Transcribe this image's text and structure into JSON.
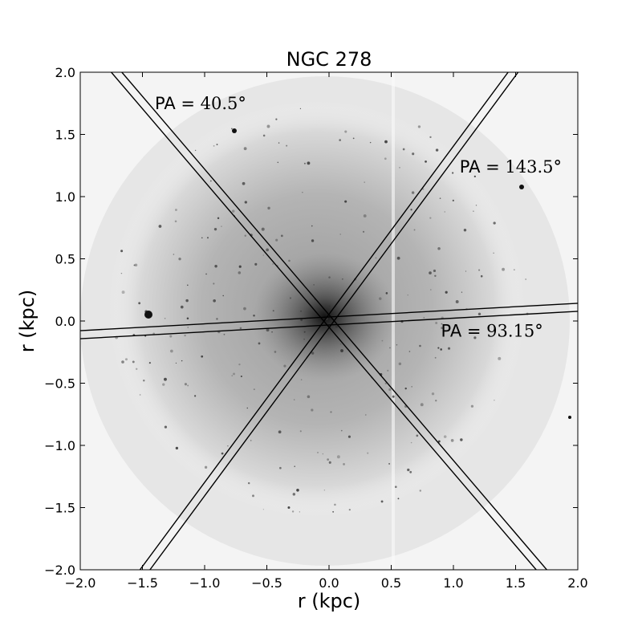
{
  "chart_data": {
    "type": "image",
    "title": "NGC 278",
    "xlabel": "r (kpc)",
    "ylabel": "r (kpc)",
    "xlim": [
      -2.0,
      2.0
    ],
    "ylim": [
      -2.0,
      2.0
    ],
    "xticks": [
      "−2.0",
      "−1.5",
      "−1.0",
      "−0.5",
      "0.0",
      "0.5",
      "1.0",
      "1.5",
      "2.0"
    ],
    "yticks": [
      "−2.0",
      "−1.5",
      "−1.0",
      "−0.5",
      "0.0",
      "0.5",
      "1.0",
      "1.5",
      "2.0"
    ],
    "colormap": "grayscale-inverted",
    "slits": [
      {
        "pa_deg": 40.5,
        "label_prefix": "PA = ",
        "label_value": "40.5°",
        "label_pos": [
          -1.4,
          1.75
        ]
      },
      {
        "pa_deg": 143.5,
        "label_prefix": "PA = ",
        "label_value": "143.5°",
        "label_pos": [
          1.05,
          1.24
        ]
      },
      {
        "pa_deg": 93.15,
        "label_prefix": "PA = ",
        "label_value": "93.15°",
        "label_pos": [
          0.9,
          -0.08
        ]
      }
    ],
    "slit_color": "#000000"
  }
}
